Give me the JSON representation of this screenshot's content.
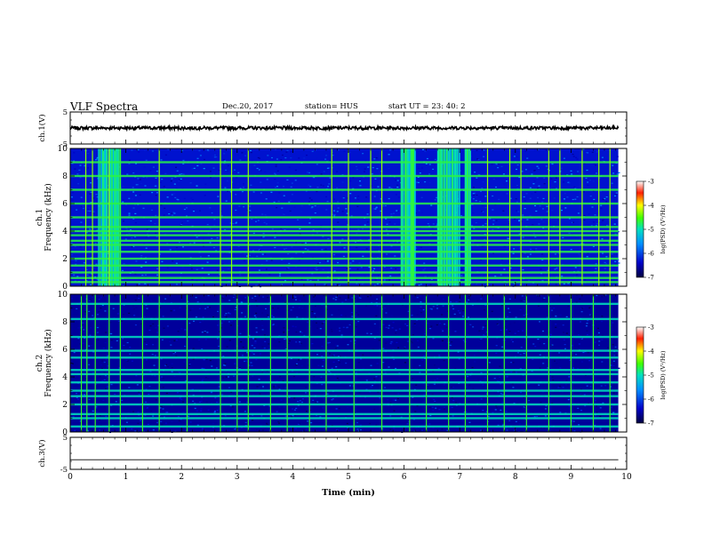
{
  "header": {
    "title": "VLF Spectra",
    "date": "Dec.20, 2017",
    "station": "station= HUS",
    "start": "start  UT  =   23: 40: 2"
  },
  "chart_data": {
    "type": "heatmap",
    "xlabel": "Time  (min)",
    "xlim": [
      0,
      10
    ],
    "x_ticks": [
      "0",
      "1",
      "2",
      "3",
      "4",
      "5",
      "6",
      "7",
      "8",
      "9",
      "10"
    ],
    "panels": [
      {
        "kind": "waveform",
        "ylabel": "ch.1(V)",
        "ylim": [
          -5,
          5
        ],
        "y_ticks": [
          "5",
          "-5"
        ],
        "baseline": 0,
        "noise_amplitude": 0.5
      },
      {
        "kind": "spectrogram",
        "channel": "ch.1",
        "ylabel": "ch.1",
        "ylabel2": "Frequency  (kHz)",
        "ylim": [
          0,
          10
        ],
        "y_ticks": [
          "0",
          "2",
          "4",
          "6",
          "8",
          "10"
        ],
        "background_level": -6.3,
        "horizontal_bands_khz": [
          0.3,
          0.6,
          1.0,
          1.5,
          2.0,
          2.5,
          3.0,
          3.3,
          3.7,
          4.0,
          4.3,
          5.0,
          6.0,
          7.0,
          8.0,
          9.0
        ],
        "impulsive_clusters_min": [
          [
            0.5,
            0.9
          ],
          [
            5.95,
            6.2
          ],
          [
            6.6,
            7.0
          ],
          [
            7.1,
            7.2
          ]
        ],
        "vertical_lines_min": [
          0.28,
          0.4,
          0.7,
          1.6,
          2.7,
          2.9,
          3.2,
          4.7,
          5.0,
          5.4,
          5.6,
          7.5,
          7.9,
          8.1,
          8.6,
          8.8,
          9.2,
          9.5,
          9.7
        ],
        "colorbar": {
          "label": "log(PSD) (V²/Hz)",
          "min": -7,
          "max": -3,
          "ticks": [
            "-3",
            "-4",
            "-5",
            "-6",
            "-7"
          ]
        }
      },
      {
        "kind": "spectrogram",
        "channel": "ch.2",
        "ylabel": "ch.2",
        "ylabel2": "Frequency  (kHz)",
        "ylim": [
          0,
          10
        ],
        "y_ticks": [
          "0",
          "2",
          "4",
          "6",
          "8",
          "10"
        ],
        "background_level": -6.6,
        "horizontal_bands_khz": [
          0.4,
          1.0,
          1.3,
          2.0,
          2.6,
          3.0,
          3.6,
          4.2,
          4.5,
          5.4,
          5.9,
          6.9,
          8.2,
          9.3
        ],
        "vertical_lines_min": [
          0.2,
          0.3,
          0.45,
          0.7,
          0.9,
          1.3,
          1.6,
          2.1,
          2.7,
          3.0,
          3.2,
          3.6,
          3.9,
          4.3,
          4.6,
          5.1,
          5.6,
          6.1,
          6.4,
          6.8,
          7.1,
          7.5,
          7.8,
          8.2,
          8.6,
          9.0,
          9.4,
          9.7
        ],
        "colorbar": {
          "label": "log(PSD) (V²/Hz)",
          "min": -7,
          "max": -3,
          "ticks": [
            "-3",
            "-4",
            "-5",
            "-6",
            "-7"
          ]
        }
      },
      {
        "kind": "waveform",
        "ylabel": "ch.3(V)",
        "ylim": [
          -5,
          5
        ],
        "y_ticks": [
          "5",
          "-5"
        ],
        "baseline": -2,
        "noise_amplitude": 0
      }
    ]
  }
}
